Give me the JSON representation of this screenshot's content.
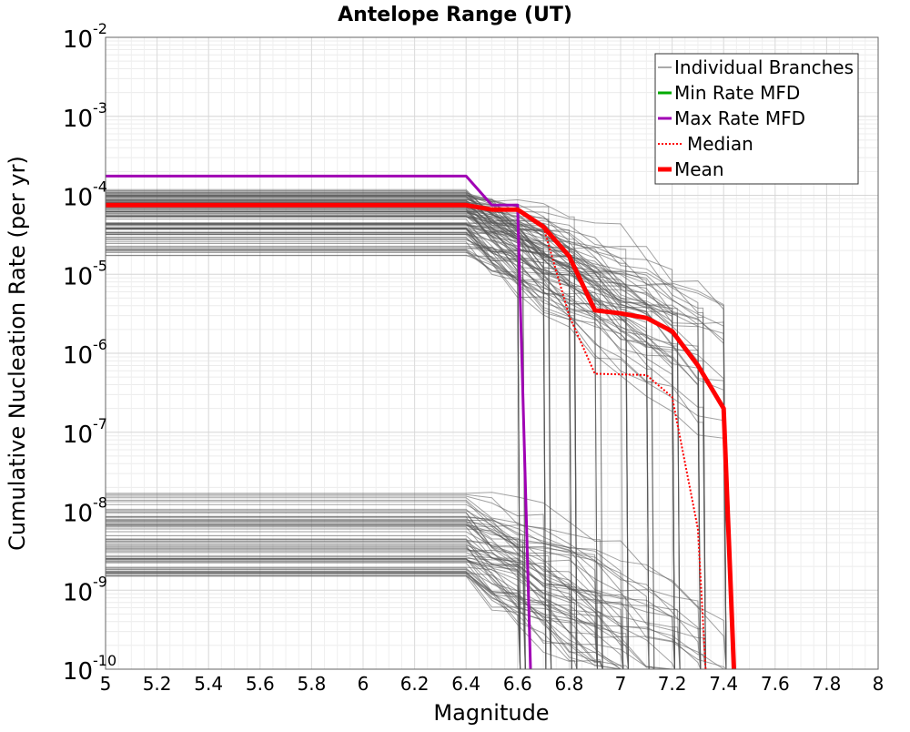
{
  "chart_data": {
    "type": "line",
    "title": "Antelope Range (UT)",
    "xlabel": "Magnitude",
    "ylabel": "Cumulative Nucleation Rate (per yr)",
    "yscale": "log",
    "xlim": [
      5,
      8
    ],
    "ylim": [
      1e-10,
      0.01
    ],
    "x_ticks": [
      "5",
      "5.2",
      "5.4",
      "5.6",
      "5.8",
      "6",
      "6.2",
      "6.4",
      "6.6",
      "6.8",
      "7",
      "7.2",
      "7.4",
      "7.6",
      "7.8",
      "8"
    ],
    "y_ticks": [
      {
        "base": "10",
        "exp": "-10",
        "value": 1e-10
      },
      {
        "base": "10",
        "exp": "-9",
        "value": 1e-09
      },
      {
        "base": "10",
        "exp": "-8",
        "value": 1e-08
      },
      {
        "base": "10",
        "exp": "-7",
        "value": 1e-07
      },
      {
        "base": "10",
        "exp": "-6",
        "value": 1e-06
      },
      {
        "base": "10",
        "exp": "-5",
        "value": 1e-05
      },
      {
        "base": "10",
        "exp": "-4",
        "value": 0.0001
      },
      {
        "base": "10",
        "exp": "-3",
        "value": 0.001
      },
      {
        "base": "10",
        "exp": "-2",
        "value": 0.01
      }
    ],
    "grid": true,
    "legend_position": "top-right",
    "legend": [
      {
        "label": "Individual Branches",
        "color": "#555555",
        "style": "thin"
      },
      {
        "label": "Min Rate MFD",
        "color": "#00aa00",
        "style": "solid"
      },
      {
        "label": "Max Rate MFD",
        "color": "#a000b4",
        "style": "solid"
      },
      {
        "label": "Median",
        "color": "#ff0000",
        "style": "dotted"
      },
      {
        "label": "Mean",
        "color": "#ff0000",
        "style": "thick"
      }
    ],
    "series": [
      {
        "name": "Max Rate MFD",
        "color": "#a000b4",
        "x": [
          5.0,
          6.4,
          6.5,
          6.6,
          6.65
        ],
        "y": [
          0.000175,
          0.000175,
          7.5e-05,
          7.5e-05,
          1e-10
        ]
      },
      {
        "name": "Median",
        "color": "#ff0000",
        "x": [
          5.0,
          6.4,
          6.5,
          6.6,
          6.7,
          6.8,
          6.9,
          7.0,
          7.1,
          7.2,
          7.3,
          7.33
        ],
        "y": [
          7.5e-05,
          7.5e-05,
          6.6e-05,
          6.6e-05,
          4e-05,
          3e-06,
          5.5e-07,
          5.4e-07,
          5.3e-07,
          2.8e-07,
          6e-09,
          1e-10
        ]
      },
      {
        "name": "Mean",
        "color": "#ff0000",
        "x": [
          5.0,
          6.4,
          6.5,
          6.6,
          6.7,
          6.8,
          6.9,
          7.0,
          7.1,
          7.2,
          7.3,
          7.4,
          7.44
        ],
        "y": [
          7.5e-05,
          7.5e-05,
          6.6e-05,
          6.6e-05,
          4e-05,
          1.7e-05,
          3.5e-06,
          3.2e-06,
          2.8e-06,
          1.9e-06,
          7e-07,
          2e-07,
          1e-10
        ]
      }
    ],
    "branches": {
      "name": "Individual Branches",
      "color": "#555555",
      "x_knots": [
        5.0,
        6.4,
        6.5,
        6.6,
        6.7,
        6.8,
        6.9,
        7.0,
        7.1,
        7.2,
        7.3,
        7.4
      ],
      "upper_group_plateau_range": [
        1.7e-05,
        0.00012
      ],
      "lower_group_plateau_range": [
        1.5e-09,
        1.7e-08
      ],
      "count": 170
    }
  }
}
